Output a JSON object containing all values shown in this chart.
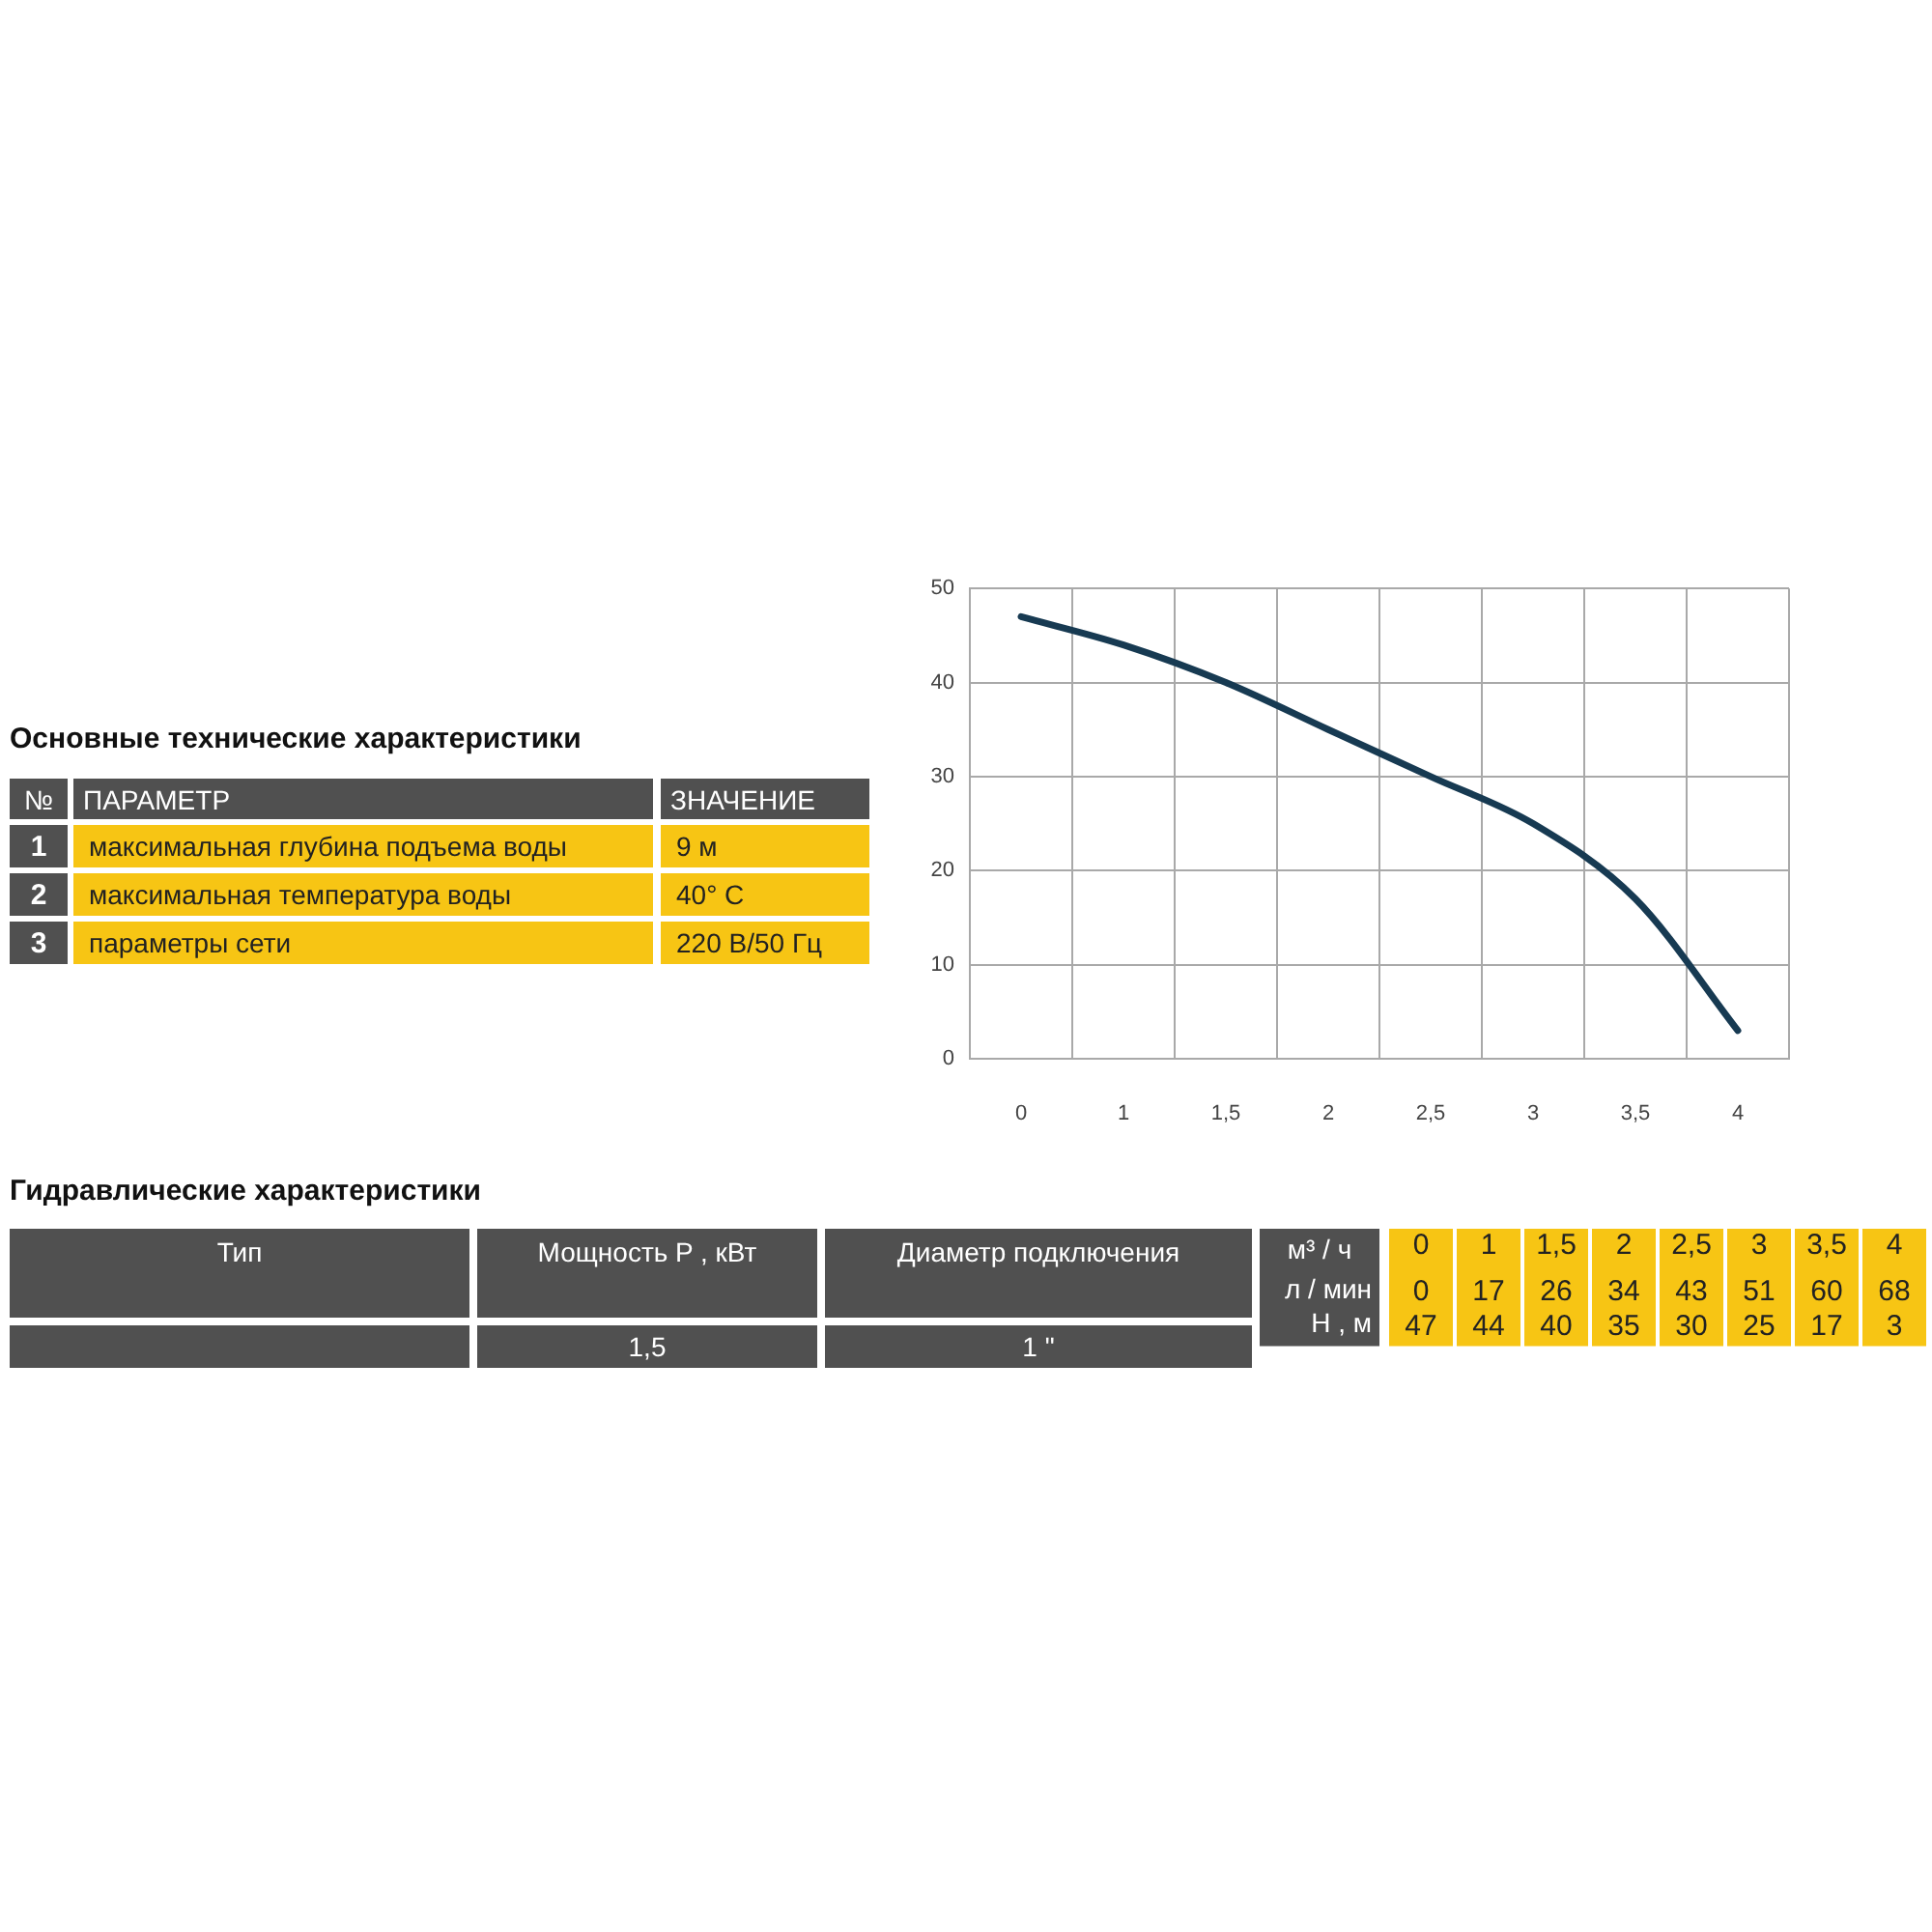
{
  "chart_data": [
    {
      "type": "other",
      "title": "Основные технические характеристики",
      "categories": [
        "№",
        "ПАРАМЕТР",
        "ЗНАЧЕНИЕ"
      ],
      "cell_labels": [
        [
          "1",
          "максимальная глубина подъема воды",
          "9 м"
        ],
        [
          "2",
          "максимальная температура воды",
          "40° C"
        ],
        [
          "3",
          "параметры сети",
          "220 В/50 Гц"
        ]
      ]
    },
    {
      "type": "line",
      "categories": [
        "0",
        "1",
        "1,5",
        "2",
        "2,5",
        "3",
        "3,5",
        "4"
      ],
      "values": [
        47,
        44,
        40,
        35,
        30,
        25,
        17,
        3
      ],
      "color": "#173a52",
      "ylim": [
        0,
        50
      ],
      "yticks": [
        0,
        10,
        20,
        30,
        40,
        50
      ],
      "grid": true,
      "marker": "none",
      "legend": false
    },
    {
      "type": "other",
      "title": "Гидравлические характеристики",
      "categories": [
        "Тип",
        "Мощность P , кВт",
        "Диаметр подключения"
      ],
      "cell_labels": [
        [
          null,
          "1,5",
          "1 \""
        ]
      ]
    },
    {
      "type": "heatmap",
      "xlabel": "м³ / ч",
      "categories": [
        "0",
        "1",
        "1,5",
        "2",
        "2,5",
        "3",
        "3,5",
        "4"
      ],
      "y_categories": [
        "л / мин",
        "H , м"
      ],
      "cells": [
        [
          0,
          17,
          26,
          34,
          43,
          51,
          60,
          68
        ],
        [
          47,
          44,
          40,
          35,
          30,
          25,
          17,
          3
        ]
      ],
      "color": "#f7c514",
      "data_labels": true
    }
  ]
}
